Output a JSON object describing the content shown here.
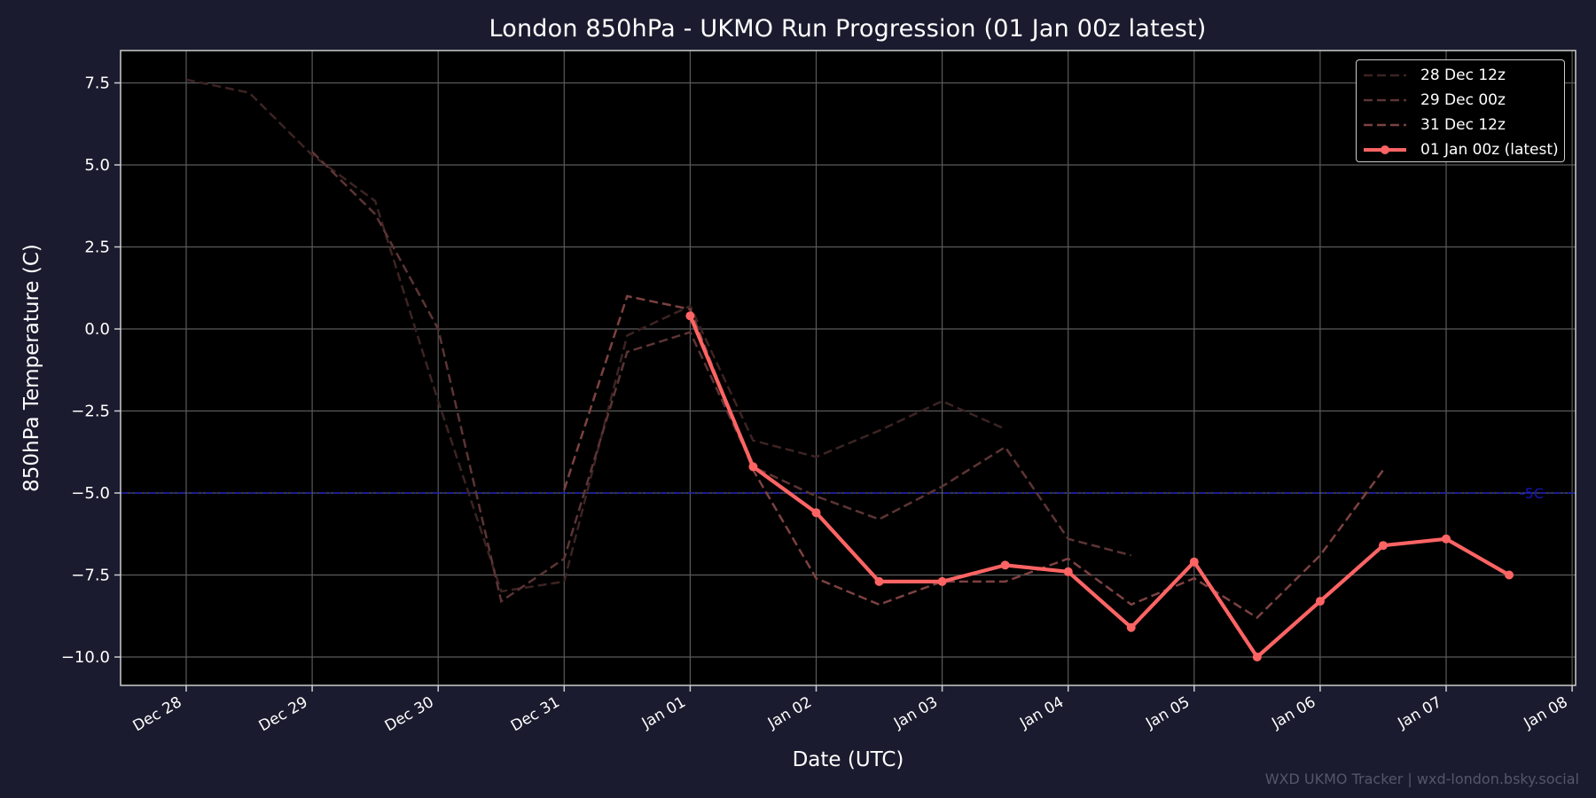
{
  "chart_data": {
    "type": "line",
    "title": "London 850hPa - UKMO Run Progression (01 Jan 00z latest)",
    "xlabel": "Date (UTC)",
    "ylabel": "850hPa Temperature (C)",
    "ylim": [
      -10.9,
      8.5
    ],
    "yticks": [
      7.5,
      5.0,
      2.5,
      0.0,
      -2.5,
      -5.0,
      -7.5,
      -10.0
    ],
    "ytick_labels": [
      "7.5",
      "5.0",
      "2.5",
      "0.0",
      "−2.5",
      "−5.0",
      "−7.5",
      "−10.0"
    ],
    "xtick_labels": [
      "Dec 28",
      "Dec 29",
      "Dec 30",
      "Dec 31",
      "Jan 01",
      "Jan 02",
      "Jan 03",
      "Jan 04",
      "Jan 05",
      "Jan 06",
      "Jan 07",
      "Jan 08"
    ],
    "x_unit": "days since Dec 28 00z (0.5 step = 12h)",
    "grid": true,
    "legend_position": "upper right",
    "reference_line": {
      "value": -5.0,
      "label": "-5C",
      "color": "#1a1acc",
      "style": "dash-dot"
    },
    "series": [
      {
        "name": "28 Dec 12z",
        "color": "#3d2323",
        "style": "dashed",
        "x": [
          0,
          0.5,
          1,
          1.5,
          2,
          2.5,
          3,
          3.5,
          4,
          4.5,
          5,
          5.5,
          6,
          6.5
        ],
        "values": [
          7.6,
          7.2,
          5.3,
          3.9,
          -2.2,
          -8.0,
          -7.7,
          -0.2,
          0.7,
          -3.4,
          -3.9,
          -3.1,
          -2.2,
          -3.05
        ]
      },
      {
        "name": "29 Dec 00z",
        "color": "#5c3434",
        "style": "dashed",
        "x": [
          1,
          1.5,
          2,
          2.5,
          3,
          3.5,
          4,
          4.5,
          5,
          5.5,
          6,
          6.5,
          7,
          7.5
        ],
        "values": [
          5.4,
          3.5,
          0.0,
          -8.3,
          -7.0,
          -0.7,
          -0.1,
          -4.2,
          -5.1,
          -5.8,
          -4.8,
          -3.6,
          -6.4,
          -6.9
        ]
      },
      {
        "name": "31 Dec 12z",
        "color": "#7d4141",
        "style": "dashed",
        "x": [
          3,
          3.5,
          4,
          4.5,
          5,
          5.5,
          6,
          6.5,
          7,
          7.5,
          8,
          8.5,
          9,
          9.5
        ],
        "values": [
          -4.9,
          1.0,
          0.6,
          -4.3,
          -7.6,
          -8.4,
          -7.7,
          -7.7,
          -7.0,
          -8.4,
          -7.6,
          -8.8,
          -6.9,
          -4.3
        ]
      },
      {
        "name": "01 Jan 00z (latest)",
        "color": "#ff6464",
        "style": "solid-markers",
        "x": [
          4,
          4.5,
          5,
          5.5,
          6,
          6.5,
          7,
          7.5,
          8,
          8.5,
          9,
          9.5,
          10,
          10.5
        ],
        "values": [
          0.4,
          -4.2,
          -5.6,
          -7.7,
          -7.7,
          -7.2,
          -7.4,
          -9.1,
          -7.1,
          -10.0,
          -8.3,
          -6.6,
          -6.4,
          -7.5
        ]
      }
    ]
  },
  "page": {
    "title": "London 850hPa - UKMO Run Progression (01 Jan 00z latest)",
    "xlabel": "Date (UTC)",
    "ylabel": "850hPa Temperature (C)",
    "reference_label": "-5C",
    "watermark": "WXD UKMO Tracker | wxd-london.bsky.social",
    "legend": [
      {
        "label": "28 Dec 12z"
      },
      {
        "label": "29 Dec 00z"
      },
      {
        "label": "31 Dec 12z"
      },
      {
        "label": "01 Jan 00z (latest)"
      }
    ]
  },
  "colors": {
    "figure_bg": "#1a1b2e",
    "plot_bg": "#000000",
    "grid": "#5a5a5a",
    "axis": "#cccccc",
    "text": "#ffffff",
    "watermark": "#55566a"
  }
}
